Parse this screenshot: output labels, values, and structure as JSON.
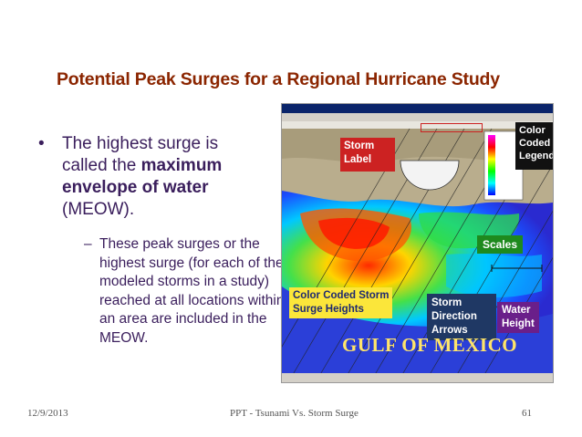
{
  "slide": {
    "title": "Potential Peak Surges for a Regional Hurricane Study",
    "bullet_marker": "•",
    "bullet_prefix": "The highest surge is called the ",
    "bullet_bold": "maximum envelope of water",
    "bullet_suffix": " (MEOW).",
    "sub_marker": "–",
    "sub_text": "These peak surges or the highest surge (for each of the modeled storms in a study) reached at all locations within an area are included in the MEOW."
  },
  "figure": {
    "callouts": {
      "storm_label": [
        "Storm",
        "Label"
      ],
      "legend": [
        "Color",
        "Coded",
        "Legend"
      ],
      "scales": "Scales",
      "heights": [
        "Color Coded Storm",
        "Surge Heights"
      ],
      "arrows": [
        "Storm",
        "Direction",
        "Arrows"
      ],
      "water": [
        "Water",
        "Height"
      ]
    },
    "gulf_text": "GULF OF MEXICO",
    "colors": {
      "callout_red": "#cc2222",
      "callout_black": "#111111",
      "callout_green": "#1e8a1e",
      "callout_yellow": "#fbe63a",
      "callout_navy": "#1f3864",
      "callout_purple": "#6a1f8a"
    }
  },
  "footer": {
    "date": "12/9/2013",
    "center": "PPT - Tsunami Vs. Storm Surge",
    "page": "61"
  }
}
